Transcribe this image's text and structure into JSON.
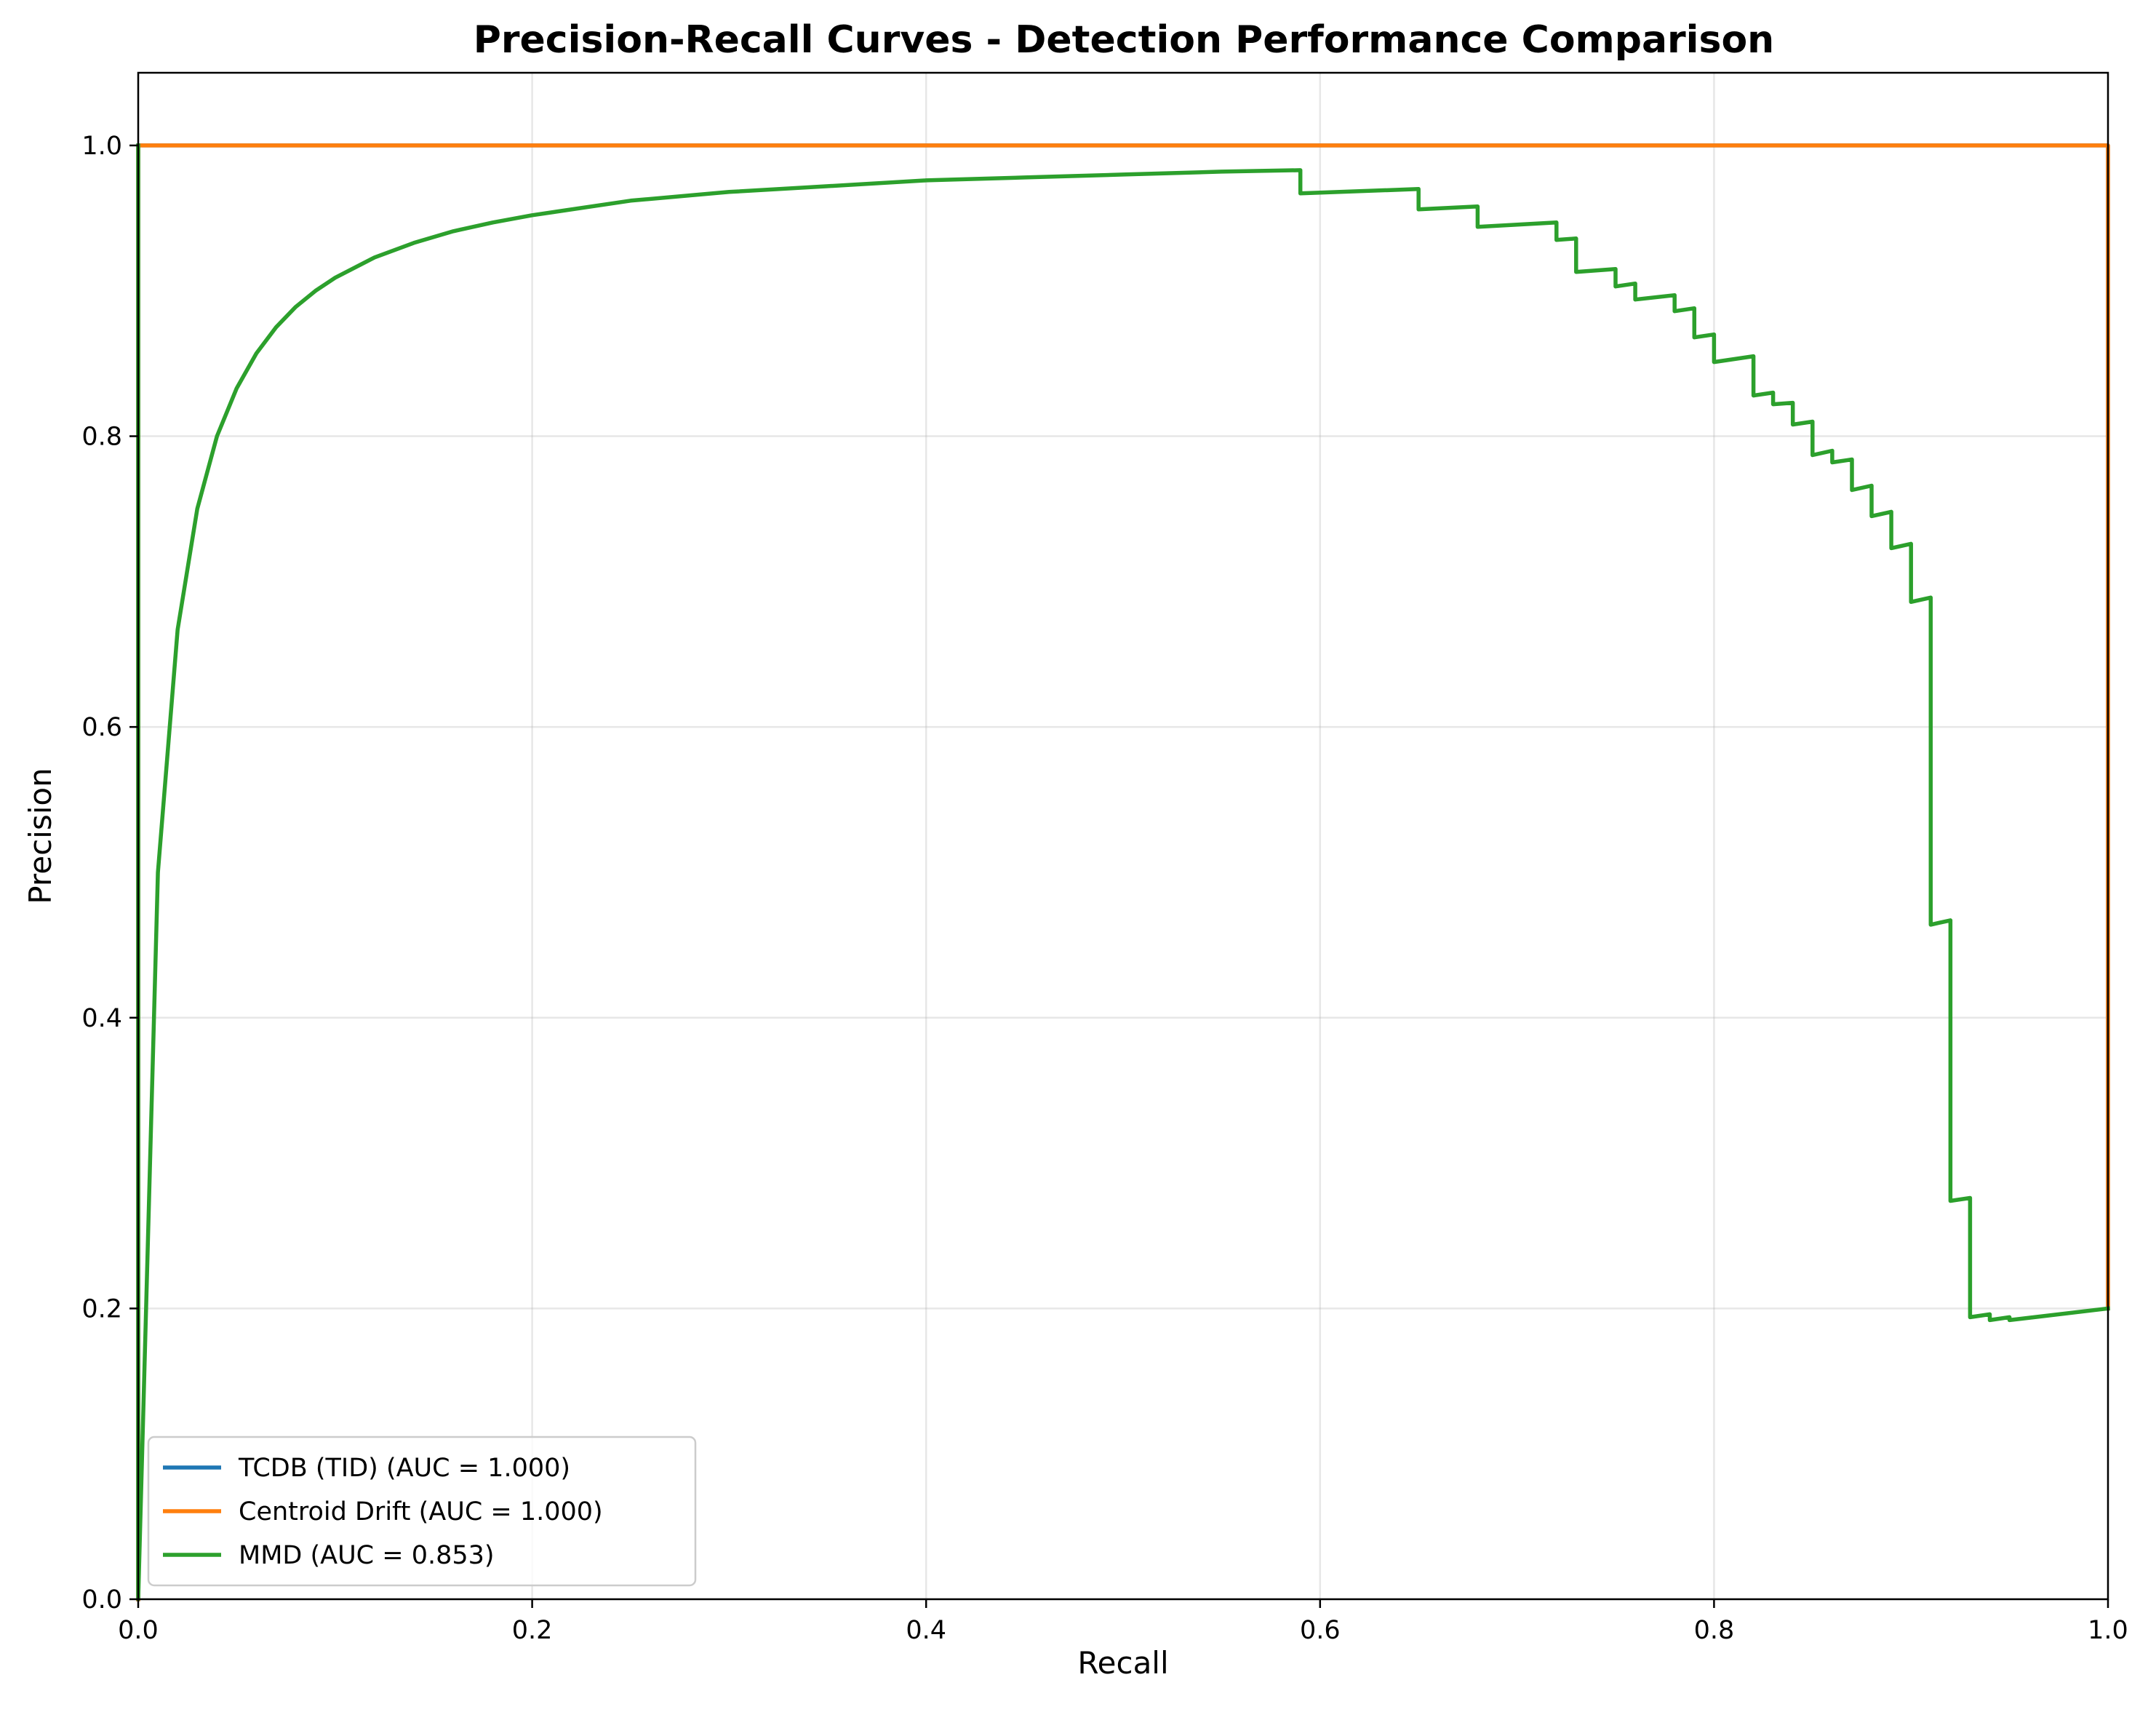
{
  "chart_data": {
    "type": "line",
    "title": "Precision-Recall Curves - Detection Performance Comparison",
    "xlabel": "Recall",
    "ylabel": "Precision",
    "xlim": [
      0.0,
      1.0
    ],
    "ylim": [
      0.0,
      1.05
    ],
    "xticks": [
      "0.0",
      "0.2",
      "0.4",
      "0.6",
      "0.8",
      "1.0"
    ],
    "yticks": [
      "0.0",
      "0.2",
      "0.4",
      "0.6",
      "0.8",
      "1.0"
    ],
    "grid": true,
    "legend_position": "lower-left",
    "series": [
      {
        "name": "TCDB (TID) (AUC = 1.000)",
        "color": "#1f77b4",
        "x": [
          0.0,
          0.0,
          1.0,
          1.0
        ],
        "y": [
          0.0,
          1.0,
          1.0,
          0.2
        ]
      },
      {
        "name": "Centroid Drift (AUC = 1.000)",
        "color": "#ff7f0e",
        "x": [
          0.0,
          0.0,
          1.0,
          1.0
        ],
        "y": [
          0.0,
          1.0,
          1.0,
          0.2
        ]
      },
      {
        "name": "MMD (AUC = 0.853)",
        "color": "#2ca02c",
        "x": [
          0.0,
          0.0,
          0.01,
          0.02,
          0.03,
          0.04,
          0.05,
          0.06,
          0.07,
          0.08,
          0.09,
          0.1,
          0.12,
          0.14,
          0.16,
          0.18,
          0.2,
          0.25,
          0.3,
          0.35,
          0.4,
          0.45,
          0.5,
          0.55,
          0.59,
          0.59,
          0.65,
          0.65,
          0.68,
          0.68,
          0.72,
          0.72,
          0.73,
          0.73,
          0.75,
          0.75,
          0.76,
          0.76,
          0.78,
          0.78,
          0.79,
          0.79,
          0.8,
          0.8,
          0.82,
          0.82,
          0.83,
          0.83,
          0.84,
          0.84,
          0.85,
          0.85,
          0.86,
          0.86,
          0.87,
          0.87,
          0.88,
          0.88,
          0.89,
          0.89,
          0.9,
          0.9,
          0.91,
          0.91,
          0.92,
          0.92,
          0.93,
          0.93,
          0.94,
          0.94,
          0.95,
          0.95,
          1.0
        ],
        "y": [
          1.0,
          0.0,
          0.5,
          0.667,
          0.75,
          0.8,
          0.833,
          0.857,
          0.875,
          0.889,
          0.9,
          0.909,
          0.923,
          0.933,
          0.941,
          0.947,
          0.952,
          0.962,
          0.968,
          0.972,
          0.976,
          0.978,
          0.98,
          0.982,
          0.983,
          0.967,
          0.97,
          0.956,
          0.958,
          0.944,
          0.947,
          0.935,
          0.936,
          0.913,
          0.915,
          0.903,
          0.905,
          0.894,
          0.897,
          0.886,
          0.888,
          0.868,
          0.87,
          0.851,
          0.855,
          0.828,
          0.83,
          0.822,
          0.823,
          0.808,
          0.81,
          0.787,
          0.79,
          0.782,
          0.784,
          0.763,
          0.766,
          0.745,
          0.748,
          0.723,
          0.726,
          0.686,
          0.689,
          0.464,
          0.467,
          0.274,
          0.276,
          0.194,
          0.196,
          0.192,
          0.194,
          0.192,
          0.2
        ]
      }
    ]
  }
}
